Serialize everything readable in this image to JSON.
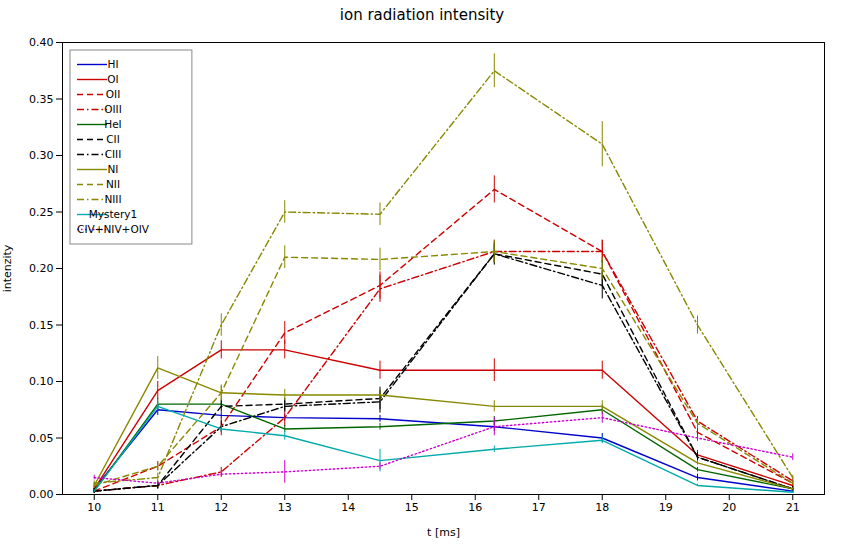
{
  "chart_data": {
    "type": "line",
    "title": "ion radiation intensity",
    "xlabel": "t [ms]",
    "ylabel": "intenzity",
    "xlim": [
      9.5,
      21.5
    ],
    "ylim": [
      0.0,
      0.4
    ],
    "xticks": [
      10,
      11,
      12,
      13,
      14,
      15,
      16,
      17,
      18,
      19,
      20,
      21
    ],
    "yticks": [
      {
        "value": 0.0,
        "label": "0.00"
      },
      0.05,
      {
        "value": 0.1,
        "label": "0.10"
      },
      0.15,
      {
        "value": 0.2,
        "label": "0.20"
      },
      0.25,
      {
        "value": 0.3,
        "label": "0.30"
      },
      0.35,
      {
        "value": 0.4,
        "label": "0.40"
      }
    ],
    "legend": "upper left",
    "x": [
      10,
      11,
      12,
      13,
      14.5,
      16.3,
      18,
      19.5,
      21
    ],
    "series": [
      {
        "name": "HI",
        "color": "#0000cc",
        "line_style": "solid",
        "values": [
          0.005,
          0.075,
          0.07,
          0.068,
          0.067,
          0.06,
          0.05,
          0.015,
          0.003
        ],
        "yerr": [
          0.002,
          0.005,
          0.003,
          0.003,
          0.003,
          0.004,
          0.004,
          0.003,
          0.002
        ]
      },
      {
        "name": "OI",
        "color": "#cc0000",
        "line_style": "solid",
        "values": [
          0.005,
          0.092,
          0.128,
          0.128,
          0.11,
          0.11,
          0.11,
          0.035,
          0.008
        ],
        "yerr": [
          0.002,
          0.008,
          0.008,
          0.008,
          0.008,
          0.01,
          0.008,
          0.004,
          0.002
        ]
      },
      {
        "name": "OII",
        "color": "#cc0000",
        "line_style": "dashed",
        "values": [
          0.003,
          0.025,
          0.06,
          0.143,
          0.185,
          0.27,
          0.215,
          0.055,
          0.01
        ],
        "yerr": [
          0.002,
          0.004,
          0.008,
          0.01,
          0.012,
          0.012,
          0.01,
          0.004,
          0.002
        ]
      },
      {
        "name": "OIII",
        "color": "#cc0000",
        "line_style": "dashdot",
        "values": [
          0.003,
          0.008,
          0.02,
          0.068,
          0.182,
          0.215,
          0.215,
          0.065,
          0.012
        ],
        "yerr": [
          0.002,
          0.003,
          0.004,
          0.008,
          0.012,
          0.01,
          0.01,
          0.004,
          0.002
        ]
      },
      {
        "name": "HeI",
        "color": "#006600",
        "line_style": "solid",
        "values": [
          0.003,
          0.08,
          0.08,
          0.058,
          0.06,
          0.065,
          0.075,
          0.022,
          0.005
        ],
        "yerr": [
          0.002,
          0.005,
          0.004,
          0.003,
          0.003,
          0.004,
          0.004,
          0.002,
          0.001
        ]
      },
      {
        "name": "CII",
        "color": "#000000",
        "line_style": "dashed",
        "values": [
          0.003,
          0.008,
          0.078,
          0.08,
          0.085,
          0.213,
          0.195,
          0.033,
          0.005
        ],
        "yerr": [
          0.002,
          0.003,
          0.005,
          0.005,
          0.01,
          0.01,
          0.012,
          0.004,
          0.002
        ]
      },
      {
        "name": "CIII",
        "color": "#000000",
        "line_style": "dashdot",
        "values": [
          0.003,
          0.008,
          0.06,
          0.078,
          0.082,
          0.213,
          0.185,
          0.033,
          0.005
        ],
        "yerr": [
          0.002,
          0.003,
          0.005,
          0.005,
          0.01,
          0.008,
          0.012,
          0.004,
          0.002
        ]
      },
      {
        "name": "NI",
        "color": "#888800",
        "line_style": "solid",
        "values": [
          0.008,
          0.112,
          0.09,
          0.088,
          0.088,
          0.078,
          0.078,
          0.028,
          0.005
        ],
        "yerr": [
          0.002,
          0.01,
          0.006,
          0.005,
          0.005,
          0.005,
          0.005,
          0.002,
          0.001
        ]
      },
      {
        "name": "NII",
        "color": "#888800",
        "line_style": "dashed",
        "values": [
          0.008,
          0.025,
          0.09,
          0.21,
          0.208,
          0.215,
          0.2,
          0.063,
          0.01
        ],
        "yerr": [
          0.002,
          0.004,
          0.007,
          0.01,
          0.01,
          0.01,
          0.01,
          0.004,
          0.002
        ]
      },
      {
        "name": "NIII",
        "color": "#888800",
        "line_style": "dashdot",
        "values": [
          0.01,
          0.015,
          0.15,
          0.25,
          0.248,
          0.375,
          0.31,
          0.15,
          0.015
        ],
        "yerr": [
          0.002,
          0.004,
          0.01,
          0.01,
          0.01,
          0.015,
          0.02,
          0.008,
          0.002
        ]
      },
      {
        "name": "Mystery1",
        "color": "#00aaaa",
        "line_style": "solid",
        "values": [
          0.003,
          0.078,
          0.058,
          0.052,
          0.03,
          0.04,
          0.048,
          0.008,
          0.002
        ],
        "yerr": [
          0.001,
          0.004,
          0.003,
          0.004,
          0.01,
          0.003,
          0.003,
          0.001,
          0.001
        ]
      },
      {
        "name": "CIV+NIV+OIV",
        "color": "#cc00cc",
        "line_style": "dotted",
        "values": [
          0.015,
          0.01,
          0.018,
          0.02,
          0.025,
          0.06,
          0.068,
          0.05,
          0.033
        ],
        "yerr": [
          0.002,
          0.002,
          0.003,
          0.01,
          0.003,
          0.008,
          0.005,
          0.003,
          0.003
        ]
      }
    ]
  }
}
